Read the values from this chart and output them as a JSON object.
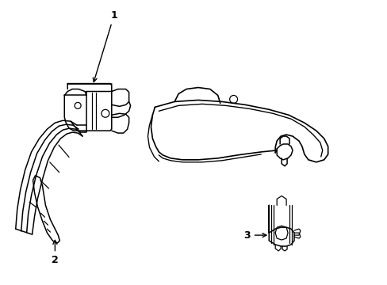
{
  "background_color": "#ffffff",
  "line_color": "#000000",
  "line_width": 1.1,
  "fig_width": 4.89,
  "fig_height": 3.6,
  "dpi": 100
}
